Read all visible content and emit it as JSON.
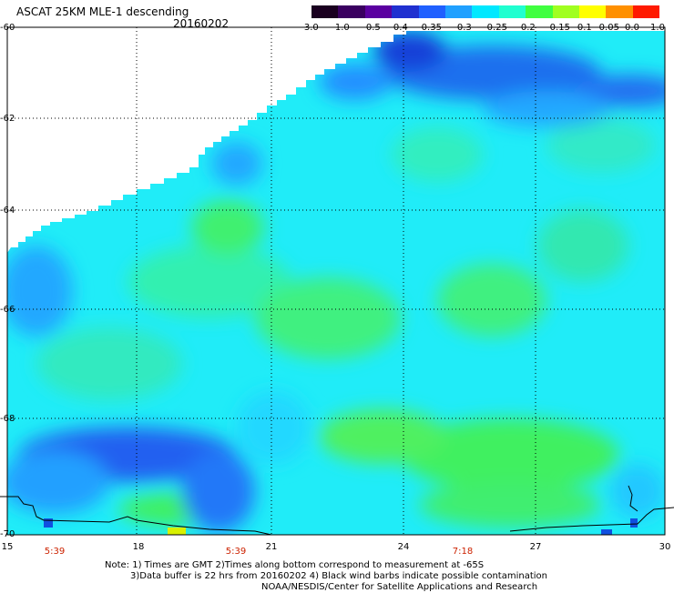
{
  "header": {
    "title": "ASCAT 25KM MLE-1 descending",
    "date": "20160202"
  },
  "colorbar": {
    "labels": [
      "-3.0",
      "-1.0",
      "-0.5",
      "-0.4",
      "-0.35",
      "-0.3",
      "-0.25",
      "-0.2",
      "-0.15",
      "-0.1",
      "-0.05",
      "0.0",
      "1.0"
    ],
    "colors": [
      "#1a0020",
      "#3a0060",
      "#5a00a0",
      "#2030d0",
      "#2060ff",
      "#20a0ff",
      "#00e8ff",
      "#20ffd0",
      "#40ff40",
      "#a0ff20",
      "#ffff00",
      "#ff9000",
      "#ff1a00"
    ]
  },
  "axes": {
    "lat_labels": [
      "-60",
      "-62",
      "-64",
      "-66",
      "-68",
      "-70"
    ],
    "lon_labels": [
      "15",
      "18",
      "21",
      "24",
      "27",
      "30"
    ]
  },
  "times": [
    "5:39",
    "5:39",
    "7:18"
  ],
  "notes": {
    "line1": "Note: 1) Times are GMT 2)Times along bottom correspond to measurement at -65S",
    "line2": "3)Data buffer is 22 hrs from 20160202 4) Black wind barbs indicate possible contamination",
    "line3": "NOAA/NESDIS/Center for Satellite Applications and Research"
  }
}
